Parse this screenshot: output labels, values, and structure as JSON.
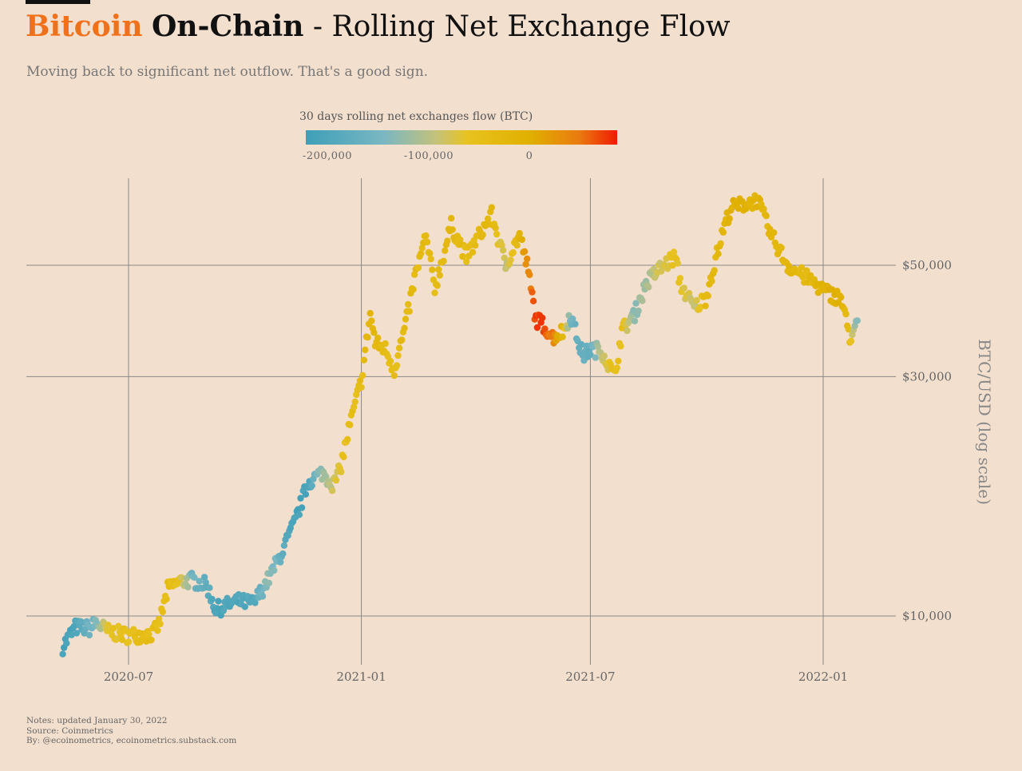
{
  "header": {
    "brand": "Bitcoin",
    "bold": "On-Chain",
    "rest": " - Rolling Net Exchange Flow",
    "subtitle": "Moving back to significant net outflow. That's a good sign."
  },
  "legend": {
    "title": "30 days rolling net exchanges flow (BTC)",
    "ticks": [
      "-200,000",
      "-100,000",
      "0"
    ],
    "tick_values": [
      -200000,
      -100000,
      0
    ],
    "range": [
      -220000,
      90000
    ],
    "colors": [
      "#3e9fb8",
      "#7ab7c2",
      "#c4c27a",
      "#e8c21f",
      "#e0b000",
      "#ea7a10",
      "#f01a00"
    ]
  },
  "notes": {
    "line1": "Notes: updated January 30, 2022",
    "line2": "Source: Coinmetrics",
    "line3": "By: @ecoinometrics, ecoinometrics.substack.com"
  },
  "chart_data": {
    "type": "scatter",
    "title": "Bitcoin On-Chain - Rolling Net Exchange Flow",
    "ylabel": "BTC/USD (log scale)",
    "y_scale": "log",
    "x_ticks": [
      "2020-07",
      "2021-01",
      "2021-07",
      "2022-01"
    ],
    "x_tick_dates": [
      "2020-07-01",
      "2021-01-01",
      "2021-07-01",
      "2022-01-01"
    ],
    "y_ticks": [
      "$10,000",
      "$30,000",
      "$50,000"
    ],
    "y_tick_values": [
      10000,
      30000,
      50000
    ],
    "xlim": [
      "2020-04-15",
      "2022-03-15"
    ],
    "color_variable": "30 days rolling net exchanges flow (BTC)",
    "grid": true,
    "anchors": [
      [
        "2020-05-10",
        8700,
        -210000
      ],
      [
        "2020-05-20",
        9500,
        -200000
      ],
      [
        "2020-06-01",
        9450,
        -150000
      ],
      [
        "2020-06-05",
        9700,
        -140000
      ],
      [
        "2020-06-15",
        9300,
        -60000
      ],
      [
        "2020-07-01",
        9150,
        -50000
      ],
      [
        "2020-07-20",
        9200,
        -40000
      ],
      [
        "2020-07-25",
        9600,
        -50000
      ],
      [
        "2020-08-01",
        11300,
        -40000
      ],
      [
        "2020-08-10",
        11700,
        -50000
      ],
      [
        "2020-08-20",
        11800,
        -150000
      ],
      [
        "2020-09-01",
        11500,
        -180000
      ],
      [
        "2020-09-08",
        10300,
        -200000
      ],
      [
        "2020-09-25",
        10700,
        -200000
      ],
      [
        "2020-10-08",
        10600,
        -190000
      ],
      [
        "2020-10-20",
        11900,
        -120000
      ],
      [
        "2020-11-01",
        13700,
        -180000
      ],
      [
        "2020-11-10",
        15500,
        -210000
      ],
      [
        "2020-11-20",
        18500,
        -200000
      ],
      [
        "2020-12-01",
        19300,
        -120000
      ],
      [
        "2020-12-10",
        18300,
        -80000
      ],
      [
        "2020-12-15",
        19500,
        -60000
      ],
      [
        "2020-12-22",
        23500,
        -50000
      ],
      [
        "2021-01-01",
        29500,
        -40000
      ],
      [
        "2021-01-08",
        40000,
        -20000
      ],
      [
        "2021-01-12",
        35000,
        -20000
      ],
      [
        "2021-01-20",
        34000,
        -40000
      ],
      [
        "2021-01-27",
        31000,
        -45000
      ],
      [
        "2021-02-05",
        38000,
        -30000
      ],
      [
        "2021-02-12",
        47000,
        -30000
      ],
      [
        "2021-02-21",
        57000,
        -30000
      ],
      [
        "2021-02-28",
        45000,
        -40000
      ],
      [
        "2021-03-13",
        60000,
        -20000
      ],
      [
        "2021-03-25",
        52000,
        -40000
      ],
      [
        "2021-04-14",
        63000,
        -20000
      ],
      [
        "2021-04-25",
        50000,
        -90000
      ],
      [
        "2021-05-06",
        57500,
        -10000
      ],
      [
        "2021-05-12",
        50000,
        30000
      ],
      [
        "2021-05-19",
        39000,
        80000
      ],
      [
        "2021-05-25",
        38000,
        70000
      ],
      [
        "2021-06-01",
        36000,
        50000
      ],
      [
        "2021-06-10",
        37000,
        -30000
      ],
      [
        "2021-06-15",
        40000,
        -150000
      ],
      [
        "2021-06-25",
        33000,
        -170000
      ],
      [
        "2021-07-01",
        34000,
        -170000
      ],
      [
        "2021-07-10",
        33800,
        -90000
      ],
      [
        "2021-07-20",
        30000,
        -40000
      ],
      [
        "2021-07-26",
        37000,
        -50000
      ],
      [
        "2021-08-05",
        40000,
        -130000
      ],
      [
        "2021-08-14",
        46000,
        -110000
      ],
      [
        "2021-08-24",
        49000,
        -80000
      ],
      [
        "2021-09-06",
        52000,
        -50000
      ],
      [
        "2021-09-10",
        46000,
        -60000
      ],
      [
        "2021-09-21",
        41000,
        -90000
      ],
      [
        "2021-09-30",
        43000,
        -30000
      ],
      [
        "2021-10-15",
        60000,
        -20000
      ],
      [
        "2021-10-20",
        65000,
        0
      ],
      [
        "2021-11-10",
        67500,
        -10000
      ],
      [
        "2021-11-20",
        58000,
        -20000
      ],
      [
        "2021-12-04",
        50000,
        -20000
      ],
      [
        "2021-12-20",
        47000,
        -30000
      ],
      [
        "2022-01-05",
        44000,
        0
      ],
      [
        "2022-01-15",
        43000,
        0
      ],
      [
        "2022-01-22",
        36000,
        -50000
      ],
      [
        "2022-01-28",
        38000,
        -140000
      ]
    ]
  }
}
